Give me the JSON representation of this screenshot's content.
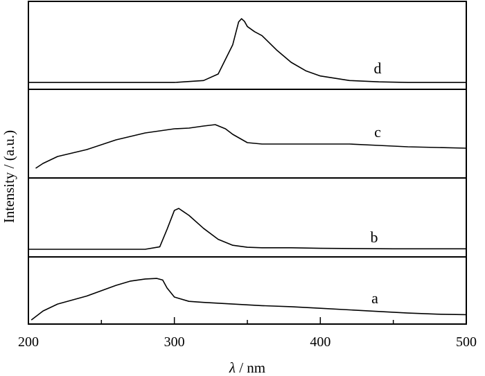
{
  "chart_data": {
    "type": "line",
    "xlabel_italic": "λ",
    "xlabel_rest": " / nm",
    "ylabel": "Intensity / (a.u.)",
    "xlim": [
      200,
      500
    ],
    "x_ticks": [
      200,
      300,
      400,
      500
    ],
    "x_minor_ticks": [
      250,
      350,
      450
    ],
    "grid": false,
    "series": [
      {
        "name": "d",
        "x": [
          200,
          300,
          320,
          330,
          340,
          344,
          346,
          348,
          350,
          355,
          360,
          370,
          380,
          390,
          400,
          420,
          440,
          460,
          480,
          500
        ],
        "y": [
          0.02,
          0.02,
          0.05,
          0.15,
          0.6,
          0.95,
          1.0,
          0.96,
          0.88,
          0.8,
          0.74,
          0.52,
          0.33,
          0.2,
          0.12,
          0.05,
          0.03,
          0.02,
          0.02,
          0.02
        ]
      },
      {
        "name": "c",
        "x": [
          205,
          210,
          220,
          240,
          260,
          280,
          300,
          310,
          320,
          328,
          335,
          340,
          350,
          360,
          380,
          400,
          420,
          440,
          460,
          480,
          500
        ],
        "y": [
          0.05,
          0.12,
          0.22,
          0.32,
          0.46,
          0.56,
          0.62,
          0.63,
          0.66,
          0.68,
          0.62,
          0.54,
          0.42,
          0.4,
          0.4,
          0.4,
          0.4,
          0.38,
          0.36,
          0.35,
          0.34
        ]
      },
      {
        "name": "b",
        "x": [
          200,
          280,
          290,
          295,
          300,
          303,
          306,
          310,
          320,
          330,
          340,
          350,
          360,
          380,
          400,
          450,
          500
        ],
        "y": [
          0.0,
          0.0,
          0.05,
          0.4,
          0.78,
          0.82,
          0.76,
          0.68,
          0.42,
          0.2,
          0.08,
          0.04,
          0.03,
          0.03,
          0.02,
          0.01,
          0.01
        ]
      },
      {
        "name": "a",
        "x": [
          202,
          210,
          220,
          240,
          260,
          270,
          280,
          288,
          292,
          295,
          300,
          310,
          320,
          340,
          360,
          380,
          400,
          420,
          440,
          460,
          480,
          500
        ],
        "y": [
          0.05,
          0.22,
          0.35,
          0.5,
          0.7,
          0.78,
          0.82,
          0.83,
          0.8,
          0.65,
          0.48,
          0.4,
          0.38,
          0.35,
          0.32,
          0.3,
          0.27,
          0.24,
          0.21,
          0.18,
          0.16,
          0.15
        ]
      }
    ]
  }
}
